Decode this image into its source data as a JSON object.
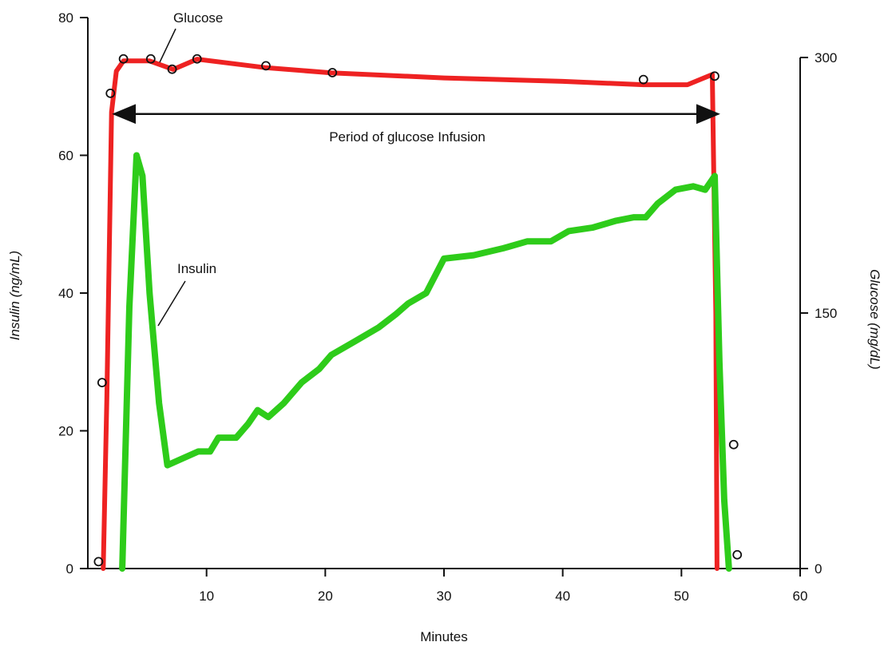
{
  "chart_data": {
    "type": "line",
    "xlabel": "Minutes",
    "ylabel_left": "Insulin (ng/mL)",
    "ylabel_right": "Glucose (mg/dL)",
    "xlim": [
      0,
      60
    ],
    "ylim_left": [
      0,
      80
    ],
    "ylim_right": [
      0,
      300
    ],
    "x_ticks": [
      "10",
      "20",
      "30",
      "40",
      "50",
      "60"
    ],
    "y_ticks_left": [
      "0",
      "20",
      "40",
      "60",
      "80"
    ],
    "y_ticks_right": [
      "0",
      "150",
      "300"
    ],
    "grid": false,
    "series": [
      {
        "name": "Glucose",
        "axis": "right",
        "color": "#ee2222",
        "x": [
          1.3,
          1.6,
          2.0,
          2.4,
          3.0,
          5.2,
          7.2,
          9.2,
          15.0,
          20.5,
          30,
          40,
          46.8,
          50.5,
          52.6,
          52.9,
          53.0
        ],
        "y": [
          0,
          100,
          268,
          292,
          298,
          298,
          293,
          299,
          294,
          291,
          288,
          286,
          284,
          284,
          290,
          150,
          0
        ]
      },
      {
        "name": "Insulin",
        "axis": "left",
        "color": "#2ecc1a",
        "x": [
          2.9,
          3.5,
          4.1,
          4.6,
          5.2,
          6.0,
          6.7,
          8.0,
          9.3,
          10.3,
          11.0,
          12.5,
          13.5,
          14.3,
          15.2,
          16.5,
          18.0,
          19.5,
          20.5,
          22.5,
          24.5,
          26.0,
          27.0,
          28.5,
          30.0,
          32.5,
          35.0,
          37.0,
          39.0,
          40.5,
          42.5,
          44.5,
          46.0,
          47.0,
          48.0,
          49.5,
          51.0,
          52.0,
          52.8,
          53.2,
          53.6,
          54.0
        ],
        "y": [
          0,
          38,
          60,
          57,
          40,
          24,
          15,
          16,
          17,
          17,
          19,
          19,
          21,
          23,
          22,
          24,
          27,
          29,
          31,
          33,
          35,
          37,
          38.5,
          40,
          45,
          45.5,
          46.5,
          47.5,
          47.5,
          49,
          49.5,
          50.5,
          51,
          51,
          53,
          55,
          55.5,
          55,
          57,
          30,
          10,
          0
        ]
      }
    ],
    "markers": [
      {
        "x": 0.9,
        "y_left": 1
      },
      {
        "x": 1.2,
        "y_left": 27
      },
      {
        "x": 1.9,
        "y_left": 69
      },
      {
        "x": 3.0,
        "y_left": 74
      },
      {
        "x": 5.3,
        "y_left": 74
      },
      {
        "x": 7.1,
        "y_left": 72.5
      },
      {
        "x": 9.2,
        "y_left": 74
      },
      {
        "x": 15.0,
        "y_left": 73
      },
      {
        "x": 20.6,
        "y_left": 72
      },
      {
        "x": 46.8,
        "y_left": 71
      },
      {
        "x": 52.8,
        "y_left": 71.5
      },
      {
        "x": 54.4,
        "y_left": 18
      },
      {
        "x": 54.7,
        "y_left": 2
      }
    ],
    "annotations": [
      {
        "text": "Glucose",
        "target_series": "Glucose"
      },
      {
        "text": "Insulin",
        "target_series": "Insulin"
      },
      {
        "text": "Period of glucose Infusion",
        "type": "double-arrow",
        "x_from": 2.2,
        "x_to": 53.1,
        "y_left": 66
      }
    ]
  }
}
